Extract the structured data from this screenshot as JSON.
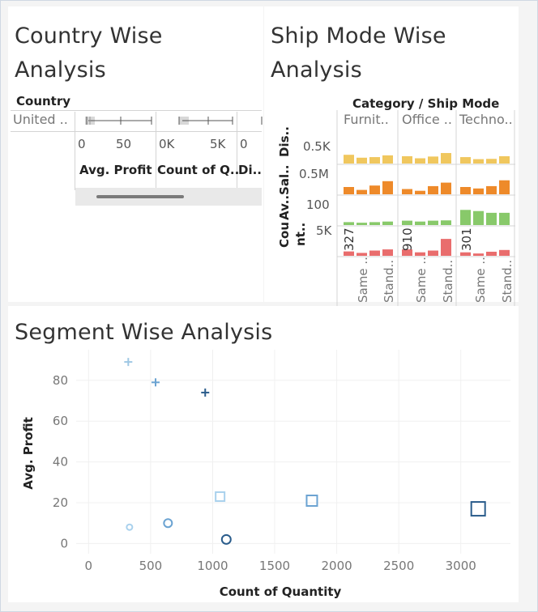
{
  "country_panel": {
    "title_line1": "Country Wise",
    "title_line2": "Analysis",
    "row_header": "Country",
    "row_value": "United ..",
    "measures": [
      {
        "label": "Avg. Profit",
        "ticks": [
          "0",
          "50"
        ]
      },
      {
        "label": "Count of Q..",
        "ticks": [
          "0K",
          "5K"
        ]
      },
      {
        "label": "Di..",
        "ticks": [
          "0"
        ]
      }
    ]
  },
  "ship_panel": {
    "title_line1": "Ship Mode Wise",
    "title_line2": "Analysis",
    "header": "Category / Ship Mode",
    "categories": [
      "Furnit..",
      "Office ..",
      "Techno.."
    ],
    "ship_modes": [
      "Same ..",
      "Stand.."
    ],
    "row_labels": [
      "Dis..",
      "Av..Sal..",
      "Cou",
      "nt.."
    ],
    "row_ticks": [
      "0.5K",
      "0.5M",
      "100",
      "5K"
    ],
    "count_labels": [
      "327",
      "910",
      "301"
    ],
    "colors": {
      "discount": "#f0c75e",
      "sales": "#ee8a2a",
      "profit": "#88c96a",
      "count": "#e96d6d"
    }
  },
  "segment_panel": {
    "title": "Segment Wise Analysis"
  },
  "chart_data": [
    {
      "type": "bar",
      "title": "Ship Mode Wise Analysis",
      "categories": [
        "Furniture",
        "Office Supplies",
        "Technology"
      ],
      "series_per_category": 4,
      "series": [
        {
          "name": "Discount",
          "values": [
            [
              30,
              20,
              22,
              28
            ],
            [
              25,
              18,
              24,
              36
            ],
            [
              22,
              15,
              16,
              25
            ]
          ],
          "max": 100
        },
        {
          "name": "Avg. Sales",
          "values": [
            [
              25,
              15,
              30,
              45
            ],
            [
              18,
              12,
              28,
              40
            ],
            [
              25,
              20,
              28,
              48
            ]
          ],
          "max": 100
        },
        {
          "name": "Avg. Profit",
          "values": [
            [
              10,
              8,
              10,
              12
            ],
            [
              15,
              12,
              15,
              16
            ],
            [
              52,
              48,
              42,
              42
            ]
          ],
          "max": 100
        },
        {
          "name": "Count",
          "values": [
            [
              15,
              10,
              18,
              22
            ],
            [
              22,
              12,
              18,
              58
            ],
            [
              12,
              8,
              14,
              20
            ]
          ],
          "max": 100
        }
      ]
    },
    {
      "type": "scatter",
      "title": "Segment Wise Analysis",
      "xlabel": "Count of Quantity",
      "ylabel": "Avg. Profit",
      "xlim": [
        -100,
        3400
      ],
      "ylim": [
        -5,
        95
      ],
      "xticks": [
        "0",
        "500",
        "1000",
        "1500",
        "2000",
        "2500",
        "3000"
      ],
      "yticks": [
        "0",
        "20",
        "40",
        "60",
        "80"
      ],
      "points": [
        {
          "x": 320,
          "y": 89,
          "shape": "plus",
          "color": "#9ec7e4"
        },
        {
          "x": 540,
          "y": 79,
          "shape": "plus",
          "color": "#6ba3d2"
        },
        {
          "x": 940,
          "y": 74,
          "shape": "plus",
          "color": "#2b5d8c"
        },
        {
          "x": 330,
          "y": 8,
          "shape": "circle",
          "color": "#a9d1ed"
        },
        {
          "x": 640,
          "y": 10,
          "shape": "circle",
          "color": "#6ba3d2"
        },
        {
          "x": 1110,
          "y": 2,
          "shape": "circle",
          "color": "#2b5d8c"
        },
        {
          "x": 1060,
          "y": 23,
          "shape": "square",
          "color": "#a9d1ed"
        },
        {
          "x": 1800,
          "y": 21,
          "shape": "square",
          "color": "#6ba3d2"
        },
        {
          "x": 3140,
          "y": 17,
          "shape": "square",
          "color": "#2b5d8c"
        }
      ]
    }
  ]
}
